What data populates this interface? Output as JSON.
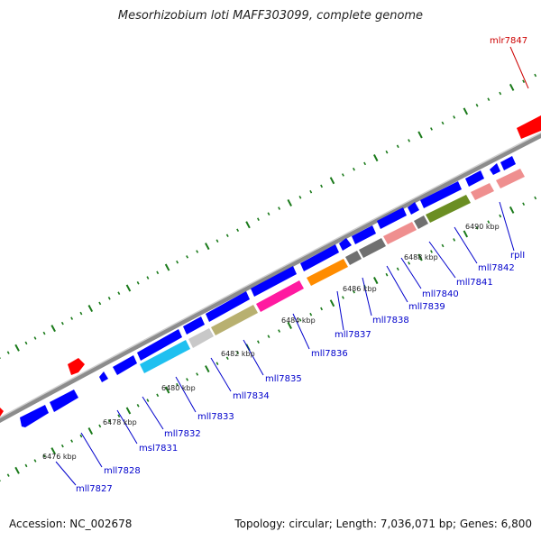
{
  "title": "Mesorhizobium loti MAFF303099, complete genome",
  "footer": {
    "accession": "Accession: NC_002678",
    "summary": "Topology: circular; Length: 7,036,071 bp; Genes: 6,800"
  },
  "colors": {
    "blue": "#0000ff",
    "red": "#ff0000",
    "cyan": "#1fc0f0",
    "gray": "#c8c8c8",
    "khaki": "#b8b070",
    "magenta": "#ff1aa0",
    "orange": "#ff8c00",
    "darkgray": "#707070",
    "pink": "#ef8f8f",
    "olive": "#6b8e23",
    "backbone": "#8c8c8c",
    "tick": "#1a7a1a"
  },
  "kbp_ticks": [
    "6476 kbp",
    "6478 kbp",
    "6480 kbp",
    "6482 kbp",
    "6484 kbp",
    "6486 kbp",
    "6488 kbp",
    "6490 kbp"
  ],
  "gene_labels": [
    "mll7827",
    "mll7828",
    "msl7831",
    "mll7832",
    "mll7833",
    "mll7834",
    "mll7835",
    "mll7836",
    "mll7837",
    "mll7838",
    "mll7839",
    "mll7840",
    "mll7841",
    "mll7842",
    "rplI",
    "mlr7847"
  ]
}
